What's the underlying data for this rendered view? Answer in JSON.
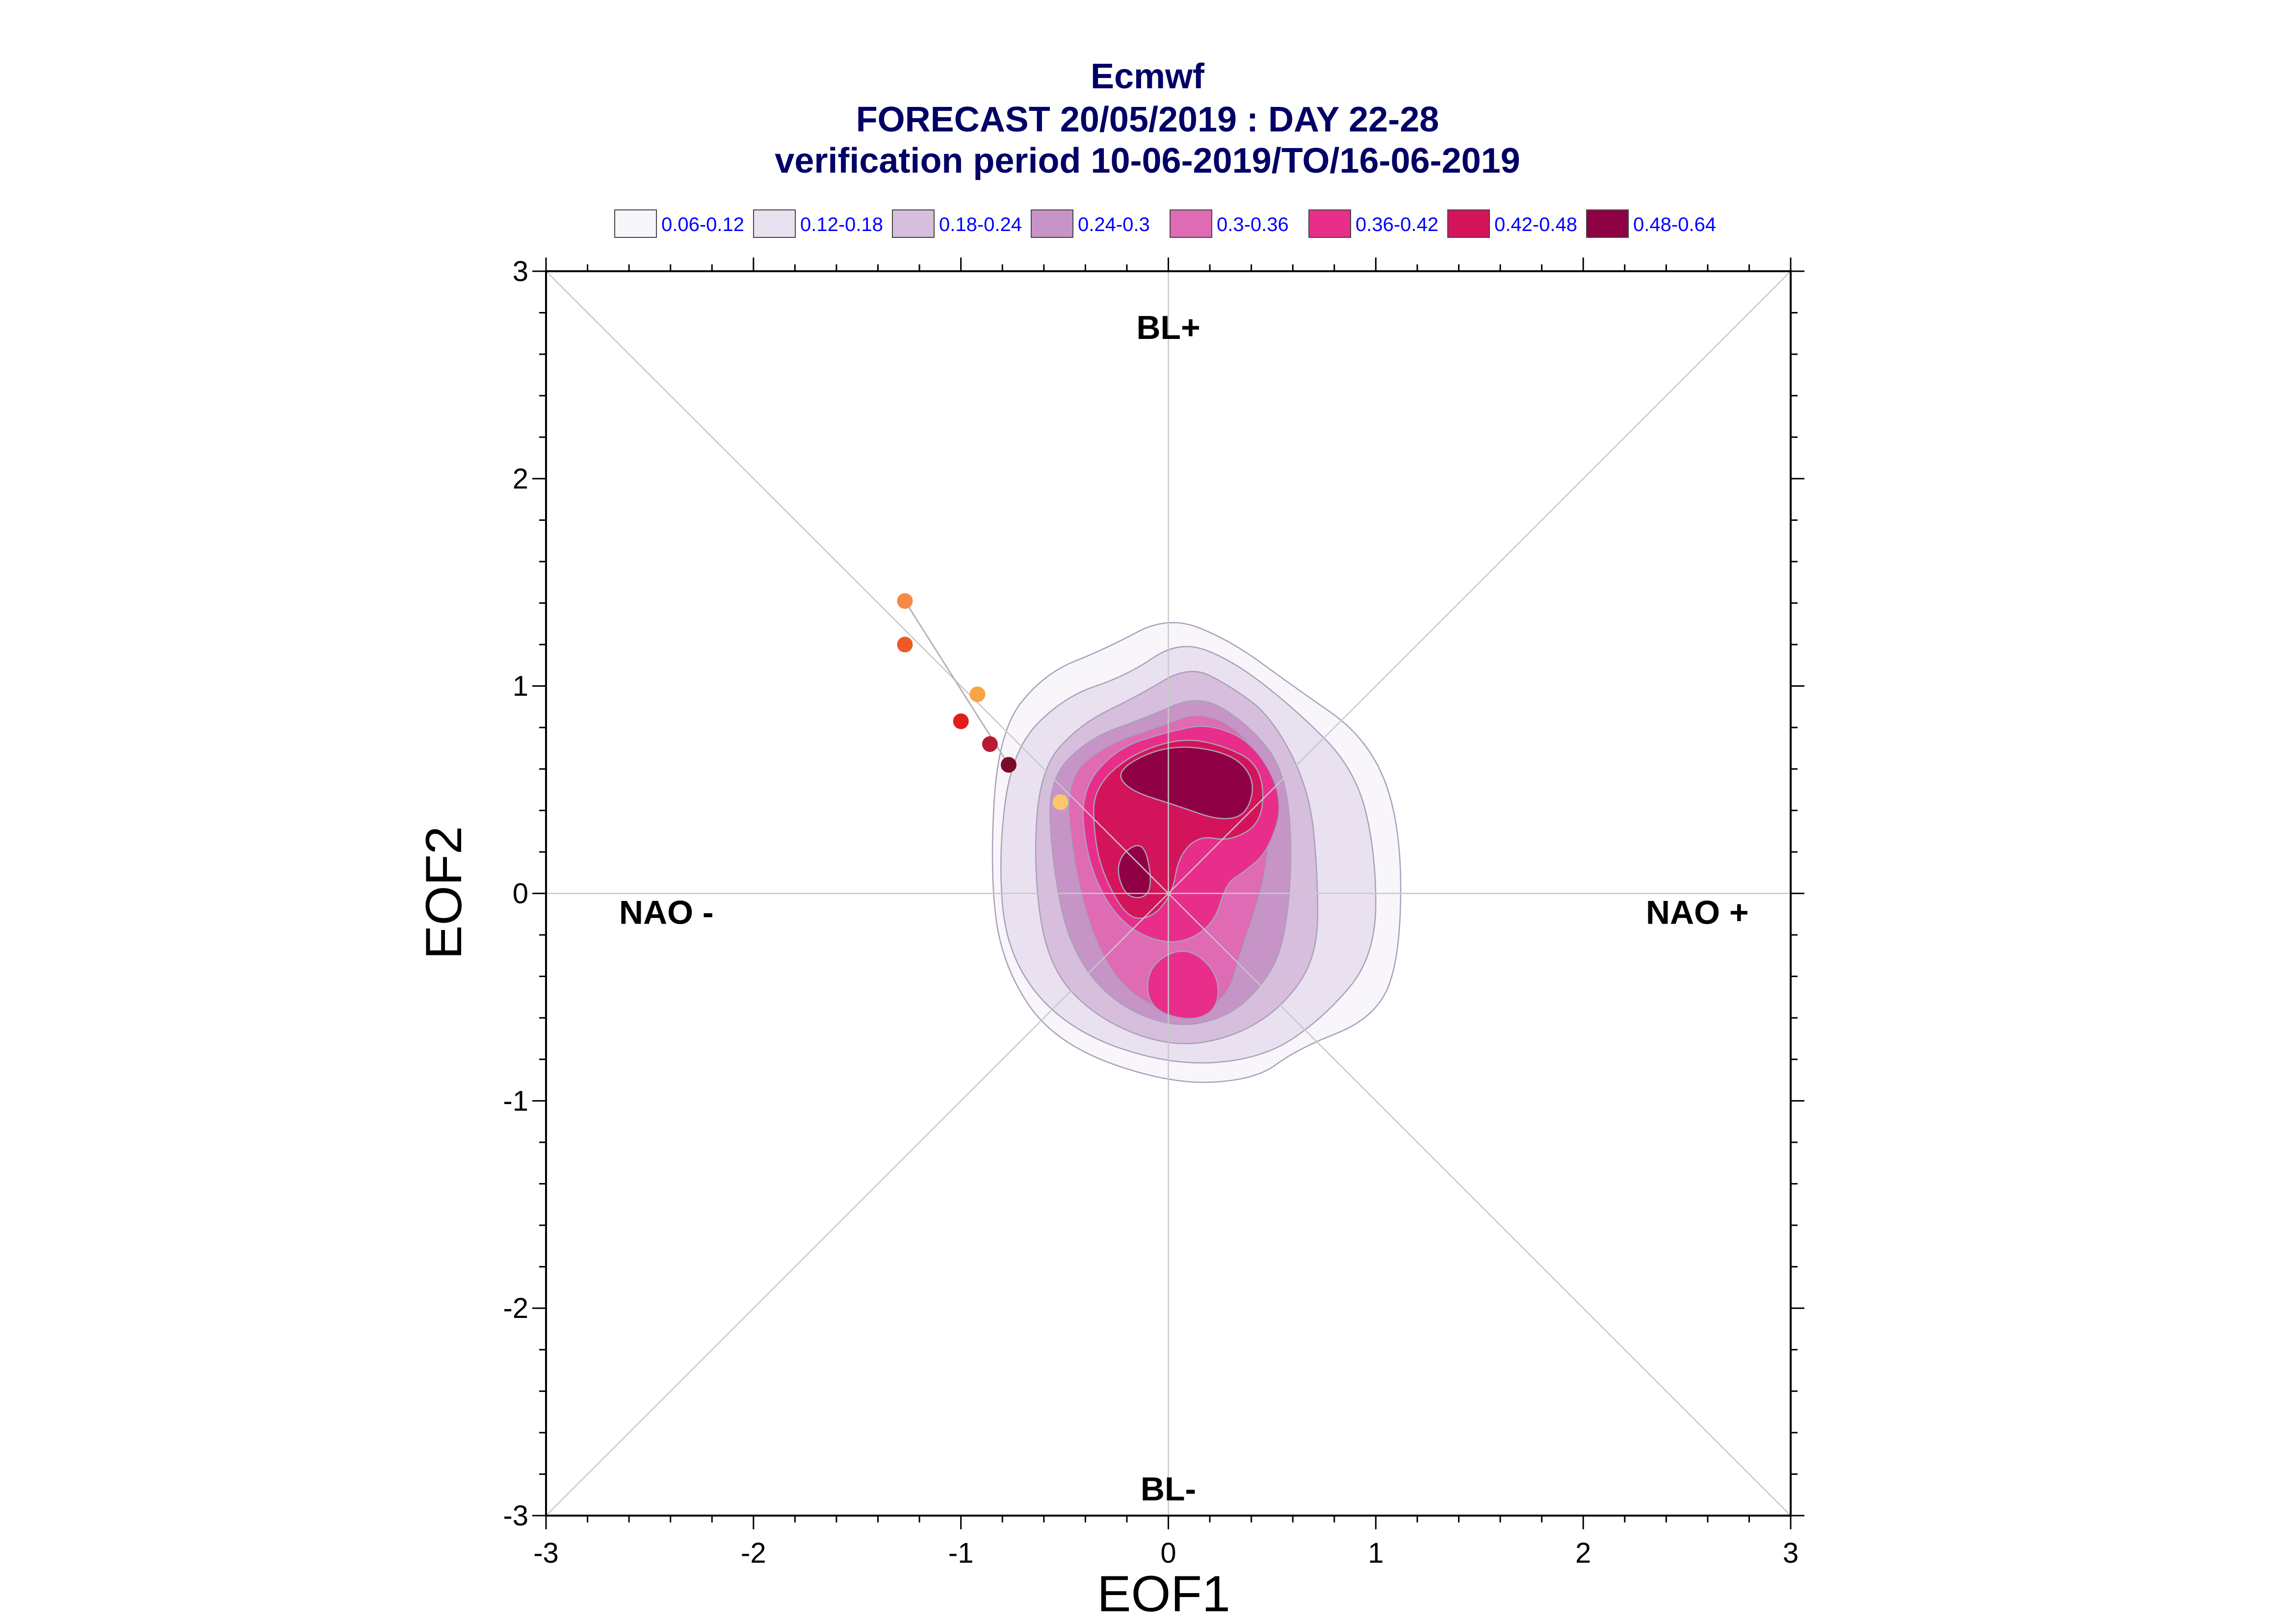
{
  "header": {
    "line1": "Ecmwf",
    "line2": "FORECAST 20/05/2019 : DAY 22-28",
    "line3": "verification period 10-06-2019/TO/16-06-2019"
  },
  "chart_data": {
    "type": "contour",
    "xlabel": "EOF1",
    "ylabel": "EOF2",
    "xlim": [
      -3,
      3
    ],
    "ylim": [
      -3,
      3
    ],
    "x_ticks": [
      -3,
      -2,
      -1,
      0,
      1,
      2,
      3
    ],
    "y_ticks": [
      -3,
      -2,
      -1,
      0,
      1,
      2,
      3
    ],
    "x_tick_labels": [
      "-3",
      "-2",
      "-1",
      "0",
      "1",
      "2",
      "3"
    ],
    "y_tick_labels": [
      "-3",
      "-2",
      "-1",
      "0",
      "1",
      "2",
      "3"
    ],
    "grid": "axes and diagonals",
    "legend_position": "top",
    "regime_labels": [
      {
        "text": "BL+",
        "x": 0,
        "y": 2.73
      },
      {
        "text": "BL-",
        "x": 0,
        "y": -2.87
      },
      {
        "text": "NAO -",
        "x": -2.42,
        "y": -0.09
      },
      {
        "text": "NAO +",
        "x": 2.55,
        "y": -0.09
      }
    ],
    "levels": [
      {
        "label": "0.06-0.12",
        "color": "#f8f6fb"
      },
      {
        "label": "0.12-0.18",
        "color": "#e9e1f0"
      },
      {
        "label": "0.18-0.24",
        "color": "#d7bedd"
      },
      {
        "label": "0.24-0.3",
        "color": "#c794c8"
      },
      {
        "label": "0.3-0.36",
        "color": "#de6bb4"
      },
      {
        "label": "0.36-0.42",
        "color": "#e82e8a"
      },
      {
        "label": "0.42-0.48",
        "color": "#d4145a"
      },
      {
        "label": "0.48-0.64",
        "color": "#900044"
      }
    ],
    "contours": [
      {
        "level": 0,
        "points": [
          [
            -0.82,
            0.78
          ],
          [
            -0.6,
            1.06
          ],
          [
            -0.3,
            1.18
          ],
          [
            0,
            1.34
          ],
          [
            0.3,
            1.22
          ],
          [
            0.6,
            1.0
          ],
          [
            0.96,
            0.75
          ],
          [
            1.12,
            0.35
          ],
          [
            1.12,
            -0.3
          ],
          [
            1.0,
            -0.6
          ],
          [
            0.62,
            -0.75
          ],
          [
            0.42,
            -0.9
          ],
          [
            0,
            -0.92
          ],
          [
            -0.55,
            -0.72
          ],
          [
            -0.8,
            -0.35
          ],
          [
            -0.86,
            0.1
          ]
        ]
      },
      {
        "level": 1,
        "points": [
          [
            -0.75,
            0.7
          ],
          [
            -0.5,
            0.95
          ],
          [
            -0.2,
            1.05
          ],
          [
            0.05,
            1.22
          ],
          [
            0.3,
            1.13
          ],
          [
            0.6,
            0.9
          ],
          [
            0.9,
            0.6
          ],
          [
            1.0,
            0.2
          ],
          [
            1.0,
            -0.3
          ],
          [
            0.75,
            -0.6
          ],
          [
            0.45,
            -0.8
          ],
          [
            0,
            -0.83
          ],
          [
            -0.5,
            -0.65
          ],
          [
            -0.78,
            -0.3
          ],
          [
            -0.82,
            0.2
          ]
        ]
      },
      {
        "level": 2,
        "points": [
          [
            -0.62,
            0.6
          ],
          [
            -0.42,
            0.82
          ],
          [
            -0.15,
            0.95
          ],
          [
            0.1,
            1.1
          ],
          [
            0.3,
            1.0
          ],
          [
            0.5,
            0.85
          ],
          [
            0.68,
            0.5
          ],
          [
            0.72,
            0.1
          ],
          [
            0.72,
            -0.3
          ],
          [
            0.55,
            -0.55
          ],
          [
            0.3,
            -0.7
          ],
          [
            0,
            -0.74
          ],
          [
            -0.35,
            -0.6
          ],
          [
            -0.58,
            -0.35
          ],
          [
            -0.65,
            0.1
          ]
        ]
      },
      {
        "level": 3,
        "points": [
          [
            -0.58,
            0.55
          ],
          [
            -0.38,
            0.75
          ],
          [
            -0.1,
            0.85
          ],
          [
            0.15,
            0.96
          ],
          [
            0.38,
            0.82
          ],
          [
            0.56,
            0.6
          ],
          [
            0.6,
            0.2
          ],
          [
            0.56,
            -0.25
          ],
          [
            0.45,
            -0.45
          ],
          [
            0.28,
            -0.6
          ],
          [
            0.02,
            -0.65
          ],
          [
            -0.28,
            -0.52
          ],
          [
            -0.48,
            -0.25
          ],
          [
            -0.56,
            0.15
          ]
        ]
      },
      {
        "level": 4,
        "points": [
          [
            -0.5,
            0.55
          ],
          [
            -0.3,
            0.72
          ],
          [
            -0.05,
            0.8
          ],
          [
            0.15,
            0.88
          ],
          [
            0.36,
            0.78
          ],
          [
            0.5,
            0.55
          ],
          [
            0.48,
            0.15
          ],
          [
            0.42,
            -0.08
          ],
          [
            0.35,
            -0.28
          ],
          [
            0.28,
            -0.52
          ],
          [
            0.05,
            -0.6
          ],
          [
            -0.2,
            -0.48
          ],
          [
            -0.35,
            -0.25
          ],
          [
            -0.45,
            0.1
          ]
        ]
      },
      {
        "level": 5,
        "points": [
          [
            -0.42,
            0.5
          ],
          [
            -0.25,
            0.7
          ],
          [
            0,
            0.78
          ],
          [
            0.2,
            0.82
          ],
          [
            0.42,
            0.72
          ],
          [
            0.56,
            0.45
          ],
          [
            0.48,
            0.2
          ],
          [
            0.36,
            0.1
          ],
          [
            0.28,
            0.05
          ],
          [
            0.22,
            -0.15
          ],
          [
            0.05,
            -0.25
          ],
          [
            -0.15,
            -0.2
          ],
          [
            -0.3,
            -0.05
          ],
          [
            -0.4,
            0.2
          ]
        ]
      },
      {
        "level": 5,
        "points": [
          [
            -0.1,
            -0.35
          ],
          [
            0.08,
            -0.25
          ],
          [
            0.24,
            -0.38
          ],
          [
            0.24,
            -0.56
          ],
          [
            0.1,
            -0.62
          ],
          [
            -0.1,
            -0.55
          ]
        ]
      },
      {
        "level": 6,
        "points": [
          [
            -0.36,
            0.5
          ],
          [
            -0.2,
            0.66
          ],
          [
            0.05,
            0.75
          ],
          [
            0.25,
            0.72
          ],
          [
            0.45,
            0.62
          ],
          [
            0.46,
            0.35
          ],
          [
            0.3,
            0.25
          ],
          [
            0.15,
            0.28
          ],
          [
            0.05,
            0.18
          ],
          [
            0.02,
            0.0
          ],
          [
            -0.08,
            -0.12
          ],
          [
            -0.2,
            -0.12
          ],
          [
            -0.32,
            0.1
          ],
          [
            -0.36,
            0.3
          ]
        ]
      },
      {
        "level": 7,
        "points": [
          [
            -0.25,
            0.6
          ],
          [
            0,
            0.72
          ],
          [
            0.3,
            0.68
          ],
          [
            0.42,
            0.55
          ],
          [
            0.38,
            0.38
          ],
          [
            0.25,
            0.35
          ],
          [
            0.05,
            0.42
          ],
          [
            -0.2,
            0.5
          ]
        ]
      },
      {
        "level": 7,
        "points": [
          [
            -0.22,
            0.2
          ],
          [
            -0.12,
            0.25
          ],
          [
            -0.08,
            0.08
          ],
          [
            -0.1,
            -0.02
          ],
          [
            -0.2,
            -0.02
          ],
          [
            -0.25,
            0.1
          ]
        ]
      }
    ],
    "points": [
      {
        "x": -1.27,
        "y": 1.41,
        "color": "#f58a45"
      },
      {
        "x": -1.27,
        "y": 1.2,
        "color": "#ee5a24"
      },
      {
        "x": -0.92,
        "y": 0.96,
        "color": "#fba443"
      },
      {
        "x": -1.0,
        "y": 0.83,
        "color": "#e01e1e"
      },
      {
        "x": -0.86,
        "y": 0.72,
        "color": "#b51b33"
      },
      {
        "x": -0.77,
        "y": 0.62,
        "color": "#7a0a2a"
      },
      {
        "x": -0.52,
        "y": 0.44,
        "color": "#fbc66c"
      }
    ],
    "trajectory": [
      [
        -1.27,
        1.41
      ],
      [
        -0.77,
        0.62
      ]
    ]
  }
}
